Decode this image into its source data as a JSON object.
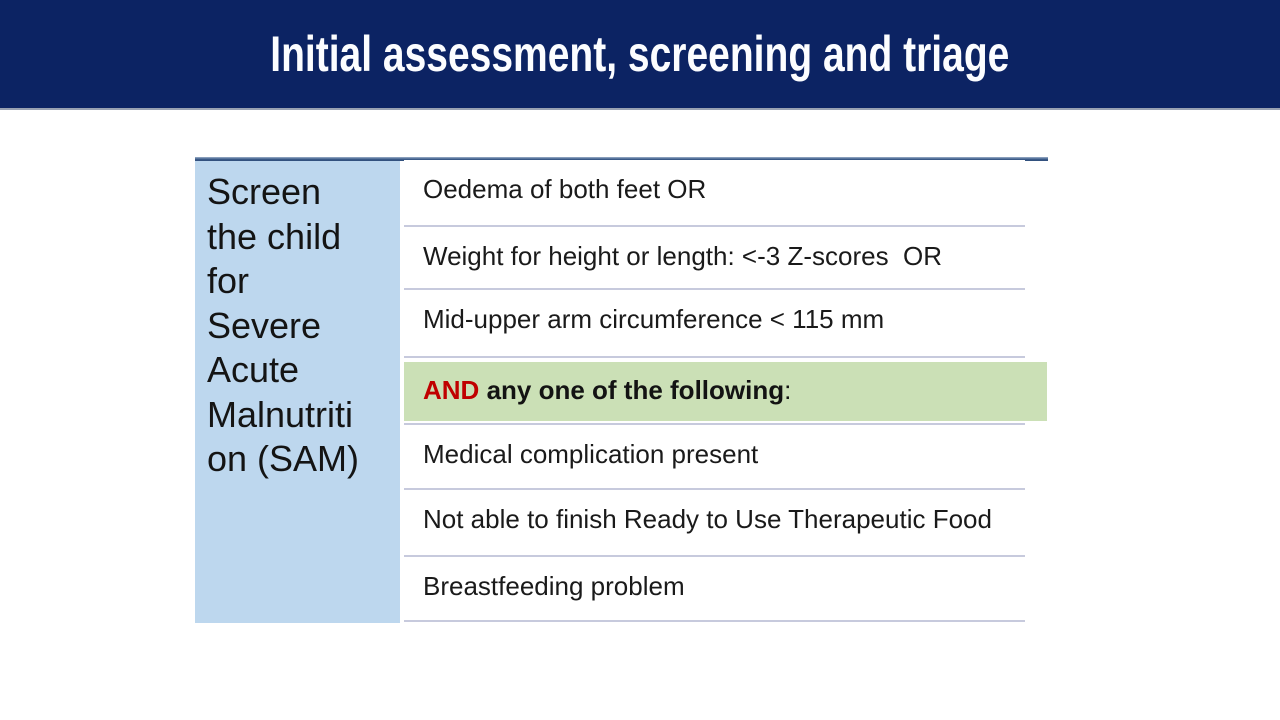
{
  "header": {
    "title": "Initial assessment, screening and triage"
  },
  "table": {
    "category": "Screen\nthe child\nfor\nSevere\nAcute\nMalnutriti\non (SAM)",
    "rows": [
      {
        "text": "Oedema of both feet OR"
      },
      {
        "text": "Weight for height or length: <-3 Z-scores  OR"
      },
      {
        "text": "Mid-upper arm circumference < 115 mm"
      },
      {
        "highlight": true,
        "conjunction": "AND",
        "body": " any one of the following",
        "punctuation": ":"
      },
      {
        "text": "Medical complication present"
      },
      {
        "text": "Not able to finish Ready to Use Therapeutic Food"
      },
      {
        "text": "Breastfeeding problem"
      }
    ]
  },
  "colors": {
    "header_bg": "#0c2363",
    "title_text": "#ffffff",
    "table_top_border": "#3c5c8a",
    "category_cell_bg": "#bdd7ee",
    "highlight_bg": "#cbe0b6",
    "conjunction_red": "#c00000",
    "row_separator": "#c7cadd",
    "body_text": "#1a1a1a"
  }
}
